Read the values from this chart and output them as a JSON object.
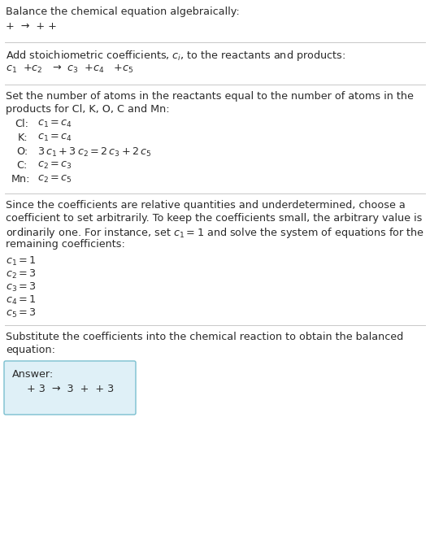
{
  "bg_color": "#ffffff",
  "text_color": "#2a2a2a",
  "line_color": "#cccccc",
  "answer_box_color": "#dff0f7",
  "answer_box_edge": "#7abfcf",
  "title": "Balance the chemical equation algebraically:",
  "line1": "+  →  + +",
  "section2_title": "Add stoichiometric coefficients, $c_i$, to the reactants and products:",
  "line2": "$c_1$  +$c_2$   →  $c_3$  +$c_4$   +$c_5$",
  "section3_title": "Set the number of atoms in the reactants equal to the number of atoms in the\nproducts for Cl, K, O, C and Mn:",
  "equations": [
    [
      "Cl:",
      "$c_1 = c_4$"
    ],
    [
      "K:",
      "$c_1 = c_4$"
    ],
    [
      "O:",
      "$3\\,c_1 + 3\\,c_2 = 2\\,c_3 + 2\\,c_5$"
    ],
    [
      "C:",
      "$c_2 = c_3$"
    ],
    [
      "Mn:",
      "$c_2 = c_5$"
    ]
  ],
  "section4_title": "Since the coefficients are relative quantities and underdetermined, choose a\ncoefficient to set arbitrarily. To keep the coefficients small, the arbitrary value is\nordinarily one. For instance, set $c_1 = 1$ and solve the system of equations for the\nremaining coefficients:",
  "coefficients": [
    "$c_1 = 1$",
    "$c_2 = 3$",
    "$c_3 = 3$",
    "$c_4 = 1$",
    "$c_5 = 3$"
  ],
  "section5_title": "Substitute the coefficients into the chemical reaction to obtain the balanced\nequation:",
  "answer_label": "Answer:",
  "answer_eq": "  + 3  →  3  +  + 3"
}
